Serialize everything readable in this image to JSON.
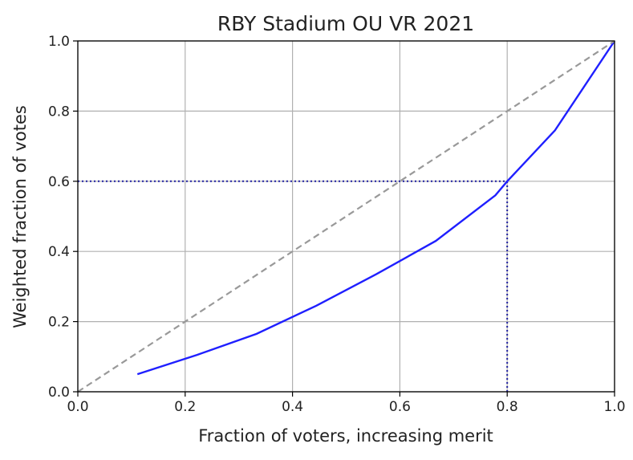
{
  "chart_data": {
    "type": "line",
    "title": "RBY Stadium OU VR 2021",
    "xlabel": "Fraction of voters, increasing merit",
    "ylabel": "Weighted fraction of votes",
    "xlim": [
      0.0,
      1.0
    ],
    "ylim": [
      0.0,
      1.0
    ],
    "xticks": [
      "0.0",
      "0.2",
      "0.4",
      "0.6",
      "0.8",
      "1.0"
    ],
    "yticks": [
      "0.0",
      "0.2",
      "0.4",
      "0.6",
      "0.8",
      "1.0"
    ],
    "grid": true,
    "series": [
      {
        "style": "solid",
        "color": "#1f1fff",
        "x": [
          0.111,
          0.222,
          0.333,
          0.444,
          0.556,
          0.667,
          0.778,
          0.8,
          0.889,
          1.0
        ],
        "y": [
          0.05,
          0.105,
          0.165,
          0.245,
          0.335,
          0.43,
          0.56,
          0.6,
          0.745,
          1.0
        ]
      },
      {
        "style": "dashed",
        "color": "#999999",
        "x": [
          0.0,
          1.0
        ],
        "y": [
          0.0,
          1.0
        ]
      }
    ],
    "reference_lines": [
      {
        "style": "dotted",
        "color": "#2020a0",
        "x": [
          0.0,
          0.8
        ],
        "y": [
          0.6,
          0.6
        ]
      },
      {
        "style": "dotted",
        "color": "#2020a0",
        "x": [
          0.8,
          0.8
        ],
        "y": [
          0.0,
          0.6
        ]
      }
    ]
  }
}
